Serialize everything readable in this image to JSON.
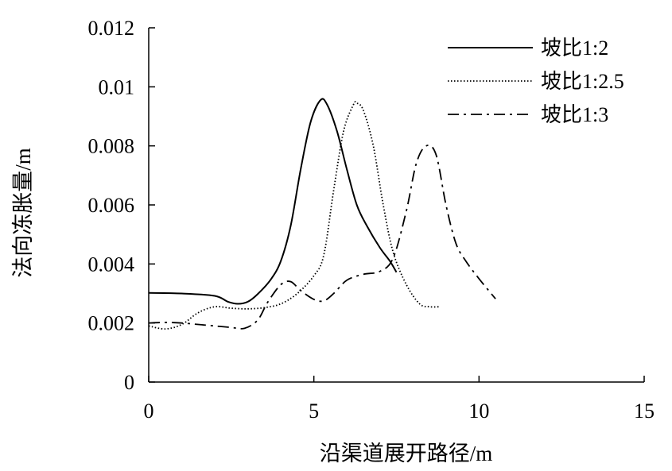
{
  "chart_data": {
    "type": "line",
    "title": "",
    "xlabel": "沿渠道展开路径/m",
    "ylabel": "法向冻胀量/m",
    "xlim": [
      0,
      15
    ],
    "ylim": [
      0,
      0.012
    ],
    "x_ticks": [
      0,
      5,
      10,
      15
    ],
    "x_tick_labels": [
      "0",
      "5",
      "10",
      "15"
    ],
    "y_ticks": [
      0,
      0.002,
      0.004,
      0.006,
      0.008,
      0.01,
      0.012
    ],
    "y_tick_labels": [
      "0",
      "0.002",
      "0.004",
      "0.006",
      "0.008",
      "0.01",
      "0.012"
    ],
    "grid": false,
    "legend_position": "top-right",
    "series": [
      {
        "name": "坡比1:2",
        "line_style": "solid",
        "color": "#000000",
        "x": [
          0,
          1.0,
          2.0,
          2.4,
          2.7,
          3.0,
          3.3,
          3.7,
          4.0,
          4.3,
          4.6,
          4.9,
          5.2,
          5.4,
          5.7,
          6.0,
          6.3,
          6.6,
          7.0,
          7.3,
          7.5
        ],
        "y": [
          0.00302,
          0.003,
          0.00292,
          0.00272,
          0.00265,
          0.00272,
          0.00298,
          0.00348,
          0.0041,
          0.0053,
          0.0072,
          0.0088,
          0.00955,
          0.0094,
          0.0085,
          0.0072,
          0.006,
          0.0053,
          0.00455,
          0.0041,
          0.00372
        ]
      },
      {
        "name": "坡比1:2.5",
        "line_style": "dotted",
        "color": "#000000",
        "x": [
          0,
          0.5,
          1.0,
          1.5,
          2.0,
          2.5,
          3.0,
          3.5,
          4.0,
          4.5,
          5.0,
          5.3,
          5.6,
          5.9,
          6.2,
          6.3,
          6.5,
          6.8,
          7.1,
          7.4,
          7.8,
          8.2,
          8.5,
          8.8
        ],
        "y": [
          0.0019,
          0.0018,
          0.00195,
          0.00235,
          0.00255,
          0.0025,
          0.00248,
          0.00252,
          0.00265,
          0.003,
          0.0036,
          0.0043,
          0.0065,
          0.0085,
          0.0094,
          0.00945,
          0.0092,
          0.008,
          0.006,
          0.0044,
          0.0033,
          0.00265,
          0.00255,
          0.00255
        ]
      },
      {
        "name": "坡比1:3",
        "line_style": "dashdot",
        "color": "#000000",
        "x": [
          0,
          0.5,
          1.0,
          1.5,
          2.0,
          2.5,
          2.9,
          3.3,
          3.6,
          4.0,
          4.3,
          4.6,
          5.0,
          5.3,
          5.6,
          6.0,
          6.5,
          7.0,
          7.4,
          7.8,
          8.1,
          8.4,
          8.7,
          9.0,
          9.3,
          9.6,
          10.0,
          10.5
        ],
        "y": [
          0.002,
          0.00202,
          0.002,
          0.00195,
          0.0019,
          0.00185,
          0.00182,
          0.0021,
          0.0027,
          0.0033,
          0.0034,
          0.0031,
          0.0028,
          0.00275,
          0.003,
          0.00345,
          0.00365,
          0.00375,
          0.0042,
          0.0058,
          0.0074,
          0.008,
          0.0077,
          0.006,
          0.0047,
          0.0041,
          0.0035,
          0.00282
        ]
      }
    ]
  }
}
